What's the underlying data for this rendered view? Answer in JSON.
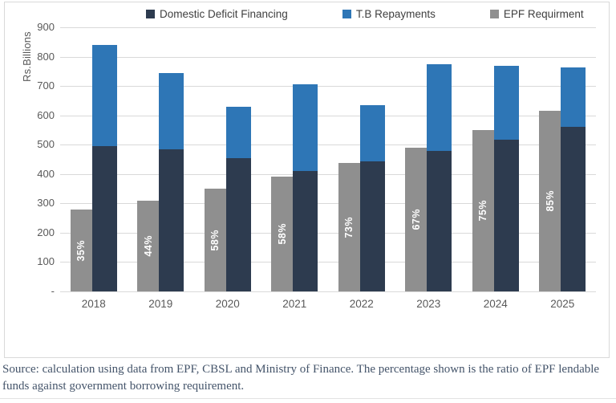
{
  "source_note": "Source: calculation using data from EPF, CBSL and Ministry of Finance. The percentage shown is the ratio of EPF lendable funds against government borrowing requirement.",
  "colors": {
    "domestic": "#2d3b4f",
    "tb": "#2e76b6",
    "epf": "#8f8f8f",
    "grid": "#d9d9d9",
    "tick_text": "#595959",
    "legend_text": "#3f3f3f",
    "note_text": "#44546a",
    "pct_text": "#ffffff"
  },
  "chart_data": {
    "type": "bar",
    "title": "",
    "xlabel": "",
    "ylabel": "Rs.Billions",
    "ylim": [
      0,
      900
    ],
    "grid": true,
    "legend_position": "top",
    "categories": [
      "2018",
      "2019",
      "2020",
      "2021",
      "2022",
      "2023",
      "2024",
      "2025"
    ],
    "series": [
      {
        "name": "Domestic Deficit Financing",
        "role": "stack-bottom",
        "color_key": "domestic",
        "values": [
          495,
          483,
          455,
          410,
          444,
          480,
          518,
          560
        ]
      },
      {
        "name": "T.B Repayments",
        "role": "stack-top",
        "color_key": "tb",
        "values": [
          345,
          262,
          173,
          297,
          191,
          293,
          250,
          202
        ]
      },
      {
        "name": "EPF Requirment",
        "role": "side-bar",
        "color_key": "epf",
        "values": [
          278,
          310,
          350,
          390,
          437,
          490,
          550,
          615
        ]
      }
    ],
    "stacked_totals": [
      840,
      745,
      628,
      707,
      635,
      773,
      768,
      762
    ],
    "epf_pct_labels": [
      "35%",
      "44%",
      "58%",
      "58%",
      "73%",
      "67%",
      "75%",
      "85%"
    ],
    "y_ticks": [
      {
        "value": 900,
        "label": "900"
      },
      {
        "value": 800,
        "label": "800"
      },
      {
        "value": 700,
        "label": "700"
      },
      {
        "value": 600,
        "label": "600"
      },
      {
        "value": 500,
        "label": "500"
      },
      {
        "value": 400,
        "label": "400"
      },
      {
        "value": 300,
        "label": "300"
      },
      {
        "value": 200,
        "label": "200"
      },
      {
        "value": 100,
        "label": "100"
      },
      {
        "value": 0,
        "label": "-"
      }
    ]
  }
}
